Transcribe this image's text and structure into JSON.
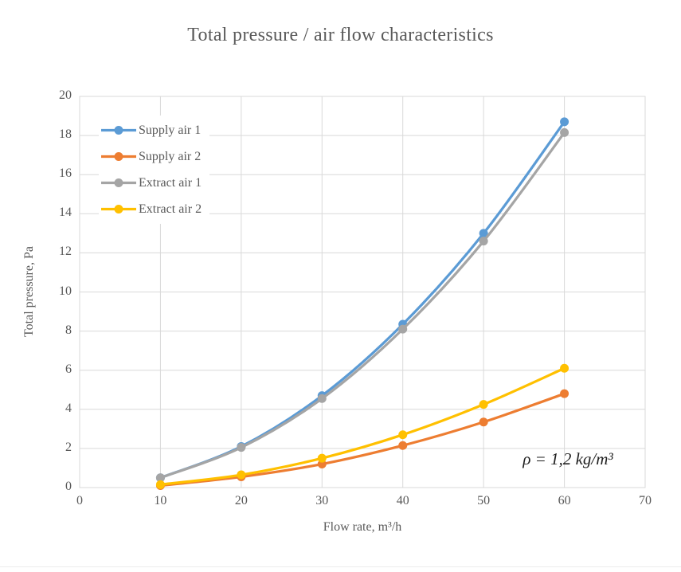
{
  "page": {
    "background": "#ffffff",
    "text_color": "#595959",
    "grid_color": "#d9d9d9",
    "divider_color": "#ececec"
  },
  "chart_data": {
    "type": "line",
    "title": "Total pressure / air flow characteristics",
    "xlabel": "Flow rate, m³/h",
    "ylabel": "Total pressure, Pa",
    "annotation": "ρ = 1,2 kg/m³",
    "x": [
      10,
      20,
      30,
      40,
      50,
      60
    ],
    "series": [
      {
        "name": "Supply air 1",
        "color": "#5B9BD5",
        "values": [
          0.5,
          2.1,
          4.7,
          8.35,
          13.0,
          18.7
        ]
      },
      {
        "name": "Supply air 2",
        "color": "#ED7D31",
        "values": [
          0.1,
          0.55,
          1.2,
          2.15,
          3.35,
          4.8
        ]
      },
      {
        "name": "Extract air 1",
        "color": "#A5A5A5",
        "values": [
          0.5,
          2.05,
          4.55,
          8.1,
          12.6,
          18.15
        ]
      },
      {
        "name": "Extract air 2",
        "color": "#FFC000",
        "values": [
          0.15,
          0.65,
          1.5,
          2.7,
          4.25,
          6.1
        ]
      }
    ],
    "xlim": [
      0,
      70
    ],
    "ylim": [
      0,
      20
    ],
    "xticks": [
      0,
      10,
      20,
      30,
      40,
      50,
      60,
      70
    ],
    "yticks": [
      0,
      2,
      4,
      6,
      8,
      10,
      12,
      14,
      16,
      18,
      20
    ],
    "grid": true,
    "smooth": true,
    "marker": "circle",
    "legend_position": "top-left-inside"
  }
}
